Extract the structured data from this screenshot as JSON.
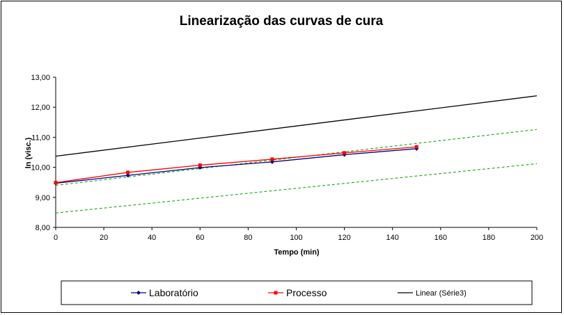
{
  "chart_data": {
    "type": "line",
    "title": "Linearização das curvas de cura",
    "xlabel": "Tempo (min)",
    "ylabel": "ln (visc.)",
    "xlim": [
      0,
      200
    ],
    "ylim": [
      8,
      13
    ],
    "xticks": [
      "0",
      "20",
      "40",
      "60",
      "80",
      "100",
      "120",
      "140",
      "160",
      "180",
      "200"
    ],
    "yticks": [
      "8,00",
      "9,00",
      "10,00",
      "11,00",
      "12,00",
      "13,00"
    ],
    "grid": false,
    "legend_position": "bottom",
    "series": [
      {
        "name": "Laboratório",
        "color": "#000080",
        "marker": "diamond",
        "x": [
          0,
          30,
          60,
          90,
          120,
          150
        ],
        "y": [
          9.47,
          9.73,
          9.99,
          10.18,
          10.42,
          10.62
        ]
      },
      {
        "name": "Processo",
        "color": "#ff0000",
        "marker": "square",
        "x": [
          0,
          30,
          60,
          90,
          120,
          150
        ],
        "y": [
          9.49,
          9.83,
          10.07,
          10.27,
          10.48,
          10.68
        ]
      },
      {
        "name": "Linear (Série3)",
        "color": "#000000",
        "marker": "none",
        "x": [
          0,
          200
        ],
        "y": [
          10.37,
          12.38
        ]
      }
    ],
    "trendlines": [
      {
        "color": "#00a000",
        "style": "dashed",
        "x": [
          0,
          200
        ],
        "y": [
          9.4,
          11.26
        ]
      },
      {
        "color": "#00a000",
        "style": "dashed",
        "x": [
          0,
          200
        ],
        "y": [
          8.48,
          10.12
        ]
      }
    ]
  }
}
